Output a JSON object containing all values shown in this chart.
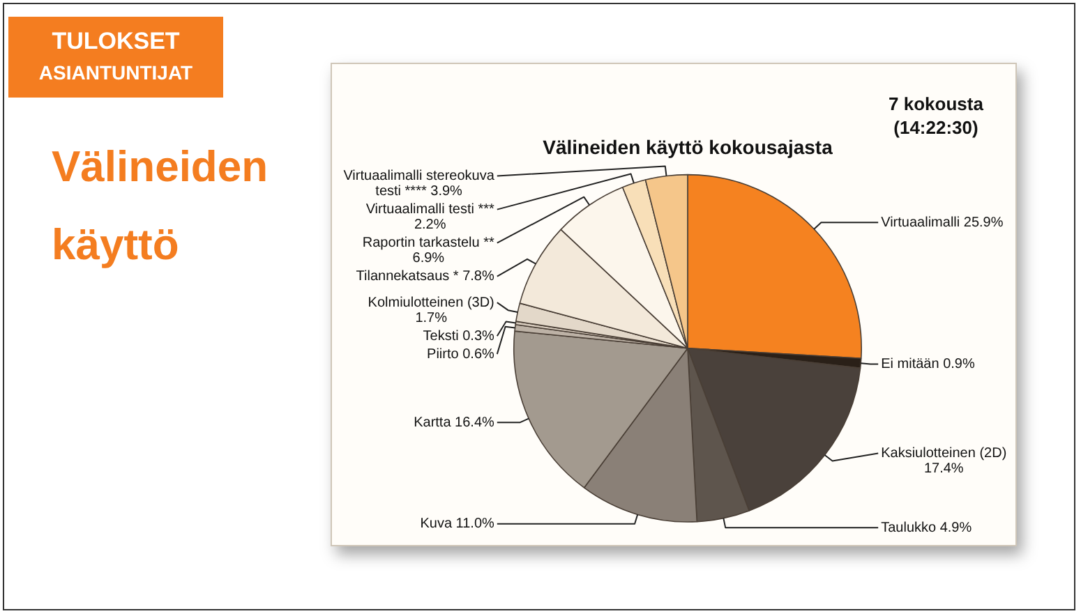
{
  "chart_data": {
    "type": "pie",
    "title": "Välineiden käyttö kokousajasta",
    "annotations": [
      "TULOKSET",
      "ASIANTUNTIJAT",
      "Välineiden käyttö",
      "7 kokousta (14:22:30)"
    ],
    "categories": [
      "Virtuaalimalli",
      "Ei mitään",
      "Kaksiulotteinen (2D)",
      "Taulukko",
      "Kuva",
      "Kartta",
      "Piirto",
      "Teksti",
      "Kolmiulotteinen (3D)",
      "Tilannekatsaus *",
      "Raportin tarkastelu",
      "Virtuaalimalli testi",
      "Virtuaalimalli stereokuva testi"
    ],
    "values": [
      25.9,
      0.9,
      17.4,
      4.9,
      11.0,
      16.4,
      0.6,
      0.3,
      1.7,
      7.8,
      6.9,
      2.2,
      3.9
    ],
    "value_labels": [
      "25.9%",
      "0.9%",
      "17.4%",
      "4.9%",
      "11.0%",
      "16.4%",
      "0.6%",
      "0.3%",
      "1.7%",
      "7.8%",
      "** 6.9%",
      "*** 2.2%",
      "**** 3.9%"
    ],
    "colors": [
      "#f58220",
      "#2a2018",
      "#4a413b",
      "#5e554d",
      "#8a8077",
      "#a39a8f",
      "#bdb2a6",
      "#d6cabc",
      "#e3d8c9",
      "#f3e9da",
      "#fcf6ec",
      "#f8dfb8",
      "#f5c68a"
    ],
    "legend": false
  }
}
